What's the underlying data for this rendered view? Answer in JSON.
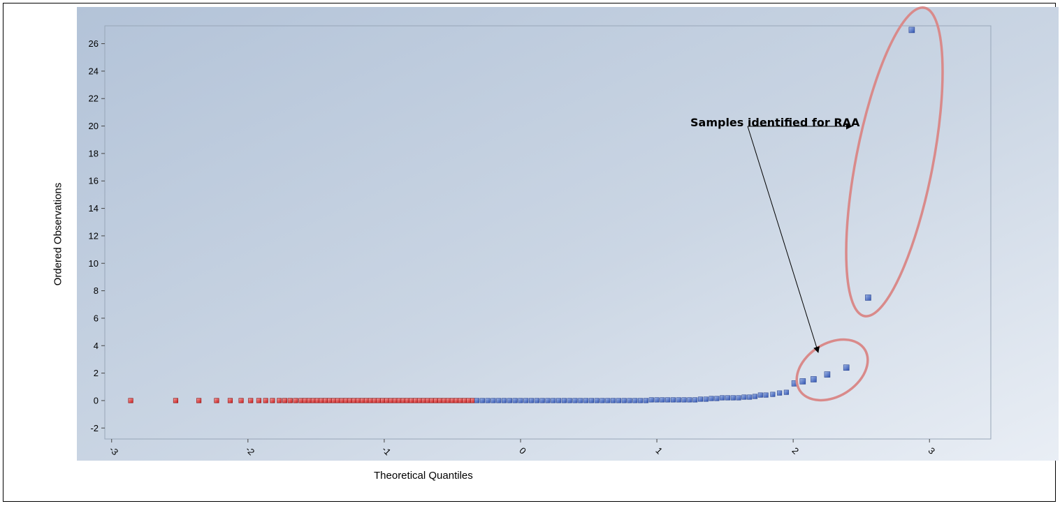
{
  "chart_data": {
    "type": "scatter",
    "title": "",
    "xlabel": "Theoretical Quantiles",
    "ylabel": "Ordered Observations",
    "xlim": [
      -3.05,
      3.45
    ],
    "ylim": [
      -2.8,
      27.3
    ],
    "x_ticks": [
      -3,
      -2,
      -1,
      0,
      1,
      2,
      3
    ],
    "x_tick_labels": [
      "-3",
      "-2",
      "-1",
      "0",
      "1",
      "2",
      "3"
    ],
    "y_ticks": [
      -2,
      0,
      2,
      4,
      6,
      8,
      10,
      12,
      14,
      16,
      18,
      20,
      22,
      24,
      26
    ],
    "y_tick_labels": [
      "-2",
      "0",
      "2",
      "4",
      "6",
      "8",
      "10",
      "12",
      "14",
      "16",
      "18",
      "20",
      "22",
      "24",
      "26"
    ],
    "grid": false,
    "series": [
      {
        "color": "#d42020",
        "points": [
          [
            -2.86,
            0
          ],
          [
            -2.53,
            0
          ],
          [
            -2.36,
            0
          ],
          [
            -2.23,
            0
          ],
          [
            -2.13,
            0
          ],
          [
            -2.05,
            0
          ],
          [
            -1.98,
            0
          ],
          [
            -1.92,
            0
          ],
          [
            -1.87,
            0
          ],
          [
            -1.82,
            0
          ],
          [
            -1.77,
            0
          ],
          [
            -1.73,
            0
          ],
          [
            -1.69,
            0
          ],
          [
            -1.65,
            0
          ],
          [
            -1.61,
            0
          ],
          [
            -1.58,
            0
          ],
          [
            -1.55,
            0
          ],
          [
            -1.52,
            0
          ],
          [
            -1.49,
            0
          ],
          [
            -1.46,
            0
          ],
          [
            -1.43,
            0
          ],
          [
            -1.4,
            0
          ],
          [
            -1.37,
            0
          ],
          [
            -1.34,
            0
          ],
          [
            -1.31,
            0
          ],
          [
            -1.28,
            0
          ],
          [
            -1.25,
            0
          ],
          [
            -1.22,
            0
          ],
          [
            -1.19,
            0
          ],
          [
            -1.16,
            0
          ],
          [
            -1.13,
            0
          ],
          [
            -1.1,
            0
          ],
          [
            -1.07,
            0
          ],
          [
            -1.04,
            0
          ],
          [
            -1.01,
            0
          ],
          [
            -0.98,
            0
          ],
          [
            -0.95,
            0
          ],
          [
            -0.92,
            0
          ],
          [
            -0.89,
            0
          ],
          [
            -0.86,
            0
          ],
          [
            -0.83,
            0
          ],
          [
            -0.8,
            0
          ],
          [
            -0.77,
            0
          ],
          [
            -0.74,
            0
          ],
          [
            -0.71,
            0
          ],
          [
            -0.68,
            0
          ],
          [
            -0.65,
            0
          ],
          [
            -0.62,
            0
          ],
          [
            -0.59,
            0
          ],
          [
            -0.56,
            0
          ],
          [
            -0.53,
            0
          ],
          [
            -0.5,
            0
          ],
          [
            -0.47,
            0
          ],
          [
            -0.44,
            0
          ],
          [
            -0.41,
            0
          ],
          [
            -0.38,
            0
          ],
          [
            -0.35,
            0
          ]
        ]
      },
      {
        "color": "#3d5fb8",
        "points": [
          [
            -0.32,
            0
          ],
          [
            -0.28,
            0
          ],
          [
            -0.24,
            0
          ],
          [
            -0.2,
            0
          ],
          [
            -0.16,
            0
          ],
          [
            -0.12,
            0
          ],
          [
            -0.08,
            0
          ],
          [
            -0.04,
            0
          ],
          [
            0.0,
            0
          ],
          [
            0.04,
            0
          ],
          [
            0.08,
            0
          ],
          [
            0.12,
            0
          ],
          [
            0.16,
            0
          ],
          [
            0.2,
            0
          ],
          [
            0.24,
            0
          ],
          [
            0.28,
            0
          ],
          [
            0.32,
            0
          ],
          [
            0.36,
            0
          ],
          [
            0.4,
            0
          ],
          [
            0.44,
            0
          ],
          [
            0.48,
            0
          ],
          [
            0.52,
            0
          ],
          [
            0.56,
            0
          ],
          [
            0.6,
            0
          ],
          [
            0.64,
            0
          ],
          [
            0.68,
            0
          ],
          [
            0.72,
            0
          ],
          [
            0.76,
            0
          ],
          [
            0.8,
            0
          ],
          [
            0.84,
            0
          ],
          [
            0.88,
            0
          ],
          [
            0.92,
            0
          ],
          [
            0.96,
            0.05
          ],
          [
            1.0,
            0.05
          ],
          [
            1.04,
            0.05
          ],
          [
            1.08,
            0.05
          ],
          [
            1.12,
            0.05
          ],
          [
            1.16,
            0.05
          ],
          [
            1.2,
            0.05
          ],
          [
            1.24,
            0.05
          ],
          [
            1.28,
            0.05
          ],
          [
            1.32,
            0.1
          ],
          [
            1.36,
            0.1
          ],
          [
            1.4,
            0.15
          ],
          [
            1.44,
            0.15
          ],
          [
            1.48,
            0.2
          ],
          [
            1.52,
            0.2
          ],
          [
            1.56,
            0.2
          ],
          [
            1.6,
            0.2
          ],
          [
            1.64,
            0.25
          ],
          [
            1.68,
            0.25
          ],
          [
            1.72,
            0.3
          ],
          [
            1.76,
            0.4
          ],
          [
            1.8,
            0.4
          ],
          [
            1.85,
            0.45
          ],
          [
            1.9,
            0.55
          ],
          [
            1.95,
            0.6
          ],
          [
            2.01,
            1.25
          ],
          [
            2.07,
            1.4
          ],
          [
            2.15,
            1.55
          ],
          [
            2.25,
            1.9
          ],
          [
            2.39,
            2.4
          ],
          [
            2.55,
            7.5
          ],
          [
            2.87,
            27.0
          ]
        ]
      }
    ],
    "annotation": {
      "text": "Samples identified for RAA"
    }
  }
}
